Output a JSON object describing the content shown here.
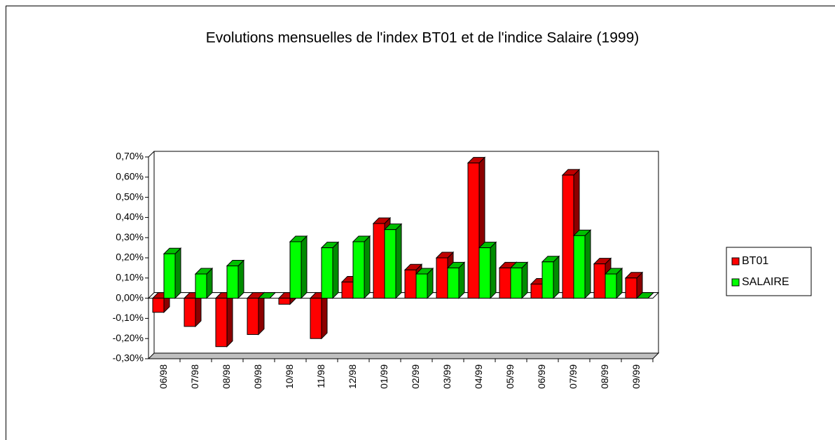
{
  "chart_data": {
    "type": "bar3d",
    "title": "Evolutions mensuelles de l'index BT01 et de l'indice Salaire (1999)",
    "categories": [
      "06/98",
      "07/98",
      "08/98",
      "09/98",
      "10/98",
      "11/98",
      "12/98",
      "01/99",
      "02/99",
      "03/99",
      "04/99",
      "05/99",
      "06/99",
      "07/99",
      "08/99",
      "09/99"
    ],
    "series": [
      {
        "name": "BT01",
        "color": "#ff0000",
        "values": [
          -0.07,
          -0.14,
          -0.24,
          -0.18,
          -0.03,
          -0.2,
          0.08,
          0.37,
          0.14,
          0.2,
          0.67,
          0.15,
          0.07,
          0.61,
          0.17,
          0.1
        ]
      },
      {
        "name": "SALAIRE",
        "color": "#00ff00",
        "values": [
          0.22,
          0.12,
          0.16,
          0,
          0.28,
          0.25,
          0.28,
          0.34,
          0.12,
          0.15,
          0.25,
          0.15,
          0.18,
          0.31,
          0.12,
          0
        ]
      }
    ],
    "ylim": [
      -0.3,
      0.7
    ],
    "yticks": [
      {
        "value": -0.3,
        "label": "-0,30%"
      },
      {
        "value": -0.2,
        "label": "-0,20%"
      },
      {
        "value": -0.1,
        "label": "-0,10%"
      },
      {
        "value": 0,
        "label": "0,00%"
      },
      {
        "value": 0.1,
        "label": "0,10%"
      },
      {
        "value": 0.2,
        "label": "0,20%"
      },
      {
        "value": 0.3,
        "label": "0,30%"
      },
      {
        "value": 0.4,
        "label": "0,40%"
      },
      {
        "value": 0.5,
        "label": "0,50%"
      },
      {
        "value": 0.6,
        "label": "0,60%"
      },
      {
        "value": 0.7,
        "label": "0,70%"
      }
    ],
    "legend": "right"
  }
}
